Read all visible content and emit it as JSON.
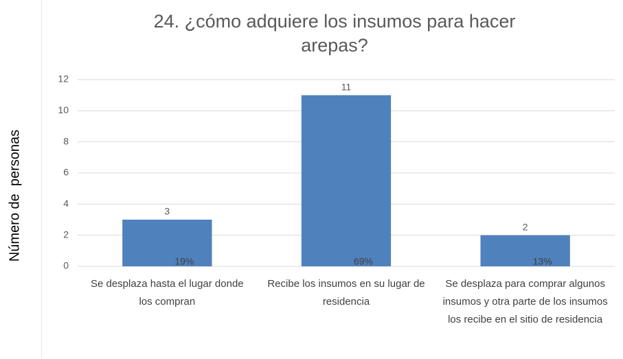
{
  "chart_data": {
    "type": "bar",
    "title": "24. ¿cómo adquiere los insumos para hacer arepas?",
    "y_label": "Número de  personas",
    "categories": [
      "Se desplaza hasta el lugar donde los compran",
      "Recibe los insumos en su lugar de residencia",
      "Se desplaza para comprar algunos insumos y otra parte de los insumos los recibe en el sitio de residencia"
    ],
    "values": [
      3,
      11,
      2
    ],
    "annotations": [
      "19%",
      "69%",
      "13%"
    ],
    "color": "#4f81bd",
    "ylim": [
      0,
      12
    ],
    "yticks": [
      0,
      2,
      4,
      6,
      8,
      10,
      12
    ],
    "grid": true
  }
}
